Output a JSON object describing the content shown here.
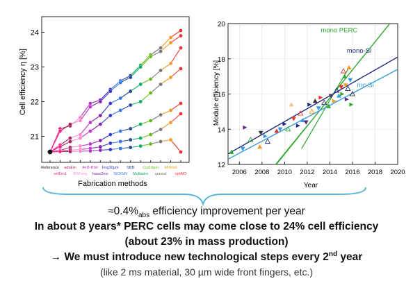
{
  "colors": {
    "mono_perc": "#2ea82e",
    "mono_si": "#1f2a7a",
    "mc_si": "#3399dd",
    "brace": "#59b5d6",
    "reference_black": "#111111"
  },
  "chart_data": [
    {
      "type": "scatter",
      "title": "",
      "xlabel": "Fabrication methods",
      "ylabel": "Cell efficiency η [%]",
      "ylim": [
        20.25,
        24.45
      ],
      "yticks": [
        21,
        22,
        23,
        24
      ],
      "grid": false,
      "categories": [
        {
          "label": "Reference",
          "color": "#111111"
        },
        {
          "label": "selEm1",
          "color": "#ee2288"
        },
        {
          "label": "advEm",
          "color": "#aa2266"
        },
        {
          "label": "BSFseg",
          "color": "#ff88cc"
        },
        {
          "label": "Al-B-BSF",
          "color": "#bb33cc"
        },
        {
          "label": "base2ms",
          "color": "#8822aa"
        },
        {
          "label": "Fng30µm",
          "color": "#3333cc"
        },
        {
          "label": "SiO/SiN",
          "color": "#3377dd"
        },
        {
          "label": "SBB",
          "color": "#224499"
        },
        {
          "label": "Multiwire",
          "color": "#11aa66"
        },
        {
          "label": "Cnt10µm",
          "color": "#66bb11"
        },
        {
          "label": "anneal",
          "color": "#777777"
        },
        {
          "label": "MWrbd",
          "color": "#ee9922"
        },
        {
          "label": "optAlO",
          "color": "#ee3333"
        }
      ],
      "series": [
        {
          "values": [
            20.55,
            21.22,
            21.3,
            21.55,
            21.95,
            22.05,
            22.35,
            22.6,
            22.75,
            23.05,
            23.35,
            23.55,
            23.85,
            24.05
          ]
        },
        {
          "values": [
            20.55,
            21.15,
            21.35,
            21.45,
            21.85,
            22.0,
            22.3,
            22.55,
            22.7,
            23.0,
            23.3,
            23.45,
            23.7,
            23.9
          ]
        },
        {
          "values": [
            20.55,
            20.75,
            20.95,
            21.05,
            21.4,
            21.6,
            21.95,
            22.1,
            22.3,
            22.5,
            22.65,
            22.9,
            23.1,
            23.55
          ]
        },
        {
          "values": [
            20.55,
            20.7,
            20.85,
            20.95,
            21.15,
            21.35,
            21.6,
            21.75,
            21.9,
            22.0,
            22.25,
            22.5,
            22.7,
            22.95
          ]
        },
        {
          "values": [
            20.55,
            20.6,
            20.68,
            20.72,
            20.78,
            20.88,
            21.05,
            21.15,
            21.22,
            21.35,
            21.45,
            21.62,
            21.75,
            21.95
          ]
        },
        {
          "values": [
            20.55,
            20.58,
            20.6,
            20.62,
            20.65,
            20.7,
            20.8,
            20.85,
            20.9,
            20.95,
            21.05,
            21.2,
            21.4,
            21.65
          ]
        },
        {
          "values": [
            20.55,
            20.56,
            20.56,
            20.57,
            20.58,
            20.6,
            20.62,
            20.65,
            20.68,
            20.72,
            20.78,
            20.85,
            20.9,
            20.55
          ]
        }
      ]
    },
    {
      "type": "scatter",
      "title": "",
      "xlabel": "Year",
      "ylabel": "Module efficiency [%]",
      "xlim": [
        2005,
        2020
      ],
      "ylim": [
        12,
        20
      ],
      "xticks": [
        2006,
        2008,
        2010,
        2012,
        2014,
        2016,
        2018,
        2020
      ],
      "yticks": [
        12,
        14,
        16,
        18,
        20
      ],
      "grid": true,
      "trend_lines": [
        {
          "name": "mono PERC",
          "color": "#2ea82e",
          "from": [
            2005.5,
            9.0
          ],
          "to": [
            2019.3,
            20.0
          ]
        },
        {
          "name": "mono-Si",
          "color": "#1f2a7a",
          "from": [
            2005.0,
            12.6
          ],
          "to": [
            2020.0,
            18.1
          ]
        },
        {
          "name": "mc-Si",
          "color": "#3399dd",
          "from": [
            2005.0,
            12.3
          ],
          "to": [
            2020.0,
            17.4
          ]
        }
      ],
      "extra_lines": [
        {
          "color": "#2ea82e",
          "from": [
            2011.5,
            12.9
          ],
          "to": [
            2015.6,
            17.4
          ]
        },
        {
          "color": "#2ea82e",
          "from": [
            2009.2,
            12.0
          ],
          "to": [
            2012.0,
            14.2
          ]
        }
      ],
      "points": [
        {
          "x": 2005.3,
          "y": 12.7,
          "color": "#2ea82e"
        },
        {
          "x": 2006.3,
          "y": 12.9,
          "color": "#3399dd"
        },
        {
          "x": 2006.5,
          "y": 14.1,
          "color": "#5a2a7a"
        },
        {
          "x": 2007.0,
          "y": 13.4,
          "color": "#2ea82e"
        },
        {
          "x": 2007.8,
          "y": 13.0,
          "color": "#ee9922"
        },
        {
          "x": 2007.9,
          "y": 13.8,
          "color": "#333333"
        },
        {
          "x": 2008.3,
          "y": 13.6,
          "color": "#3399dd"
        },
        {
          "x": 2008.5,
          "y": 13.3,
          "color": "#1f2a7a"
        },
        {
          "x": 2009.3,
          "y": 13.9,
          "color": "#ee3333"
        },
        {
          "x": 2009.6,
          "y": 14.0,
          "color": "#3399dd"
        },
        {
          "x": 2010.0,
          "y": 14.3,
          "color": "#1f2a7a"
        },
        {
          "x": 2010.3,
          "y": 14.0,
          "color": "#2ea82e"
        },
        {
          "x": 2010.6,
          "y": 15.4,
          "color": "#f4c090"
        },
        {
          "x": 2010.8,
          "y": 14.6,
          "color": "#ee3333"
        },
        {
          "x": 2011.2,
          "y": 14.2,
          "color": "#1f2a7a"
        },
        {
          "x": 2011.4,
          "y": 14.9,
          "color": "#ee3333"
        },
        {
          "x": 2011.6,
          "y": 14.5,
          "color": "#3399dd"
        },
        {
          "x": 2011.9,
          "y": 14.4,
          "color": "#5a2a7a"
        },
        {
          "x": 2012.2,
          "y": 15.4,
          "color": "#1f2a7a"
        },
        {
          "x": 2012.4,
          "y": 15.0,
          "color": "#ee9922"
        },
        {
          "x": 2012.7,
          "y": 15.6,
          "color": "#333333"
        },
        {
          "x": 2013.0,
          "y": 15.2,
          "color": "#3399dd"
        },
        {
          "x": 2013.2,
          "y": 15.8,
          "color": "#ee3333"
        },
        {
          "x": 2013.5,
          "y": 15.5,
          "color": "#1f2a7a"
        },
        {
          "x": 2013.9,
          "y": 15.3,
          "color": "#2ea82e"
        },
        {
          "x": 2014.1,
          "y": 15.9,
          "color": "#5a2a7a"
        },
        {
          "x": 2014.4,
          "y": 15.6,
          "color": "#ee9922"
        },
        {
          "x": 2014.6,
          "y": 16.2,
          "color": "#1f2a7a"
        },
        {
          "x": 2014.8,
          "y": 15.9,
          "color": "#3399dd"
        },
        {
          "x": 2015.0,
          "y": 16.4,
          "color": "#ee3333"
        },
        {
          "x": 2015.1,
          "y": 16.0,
          "color": "#2ea82e"
        },
        {
          "x": 2015.2,
          "y": 17.3,
          "color": "#ee3333"
        },
        {
          "x": 2015.3,
          "y": 17.0,
          "color": "#2ea82e"
        },
        {
          "x": 2015.4,
          "y": 16.5,
          "color": "#ee9922"
        },
        {
          "x": 2015.5,
          "y": 15.7,
          "color": "#5a2a7a"
        },
        {
          "x": 2015.6,
          "y": 16.3,
          "color": "#1f2a7a"
        },
        {
          "x": 2015.7,
          "y": 17.5,
          "color": "#ee9922"
        },
        {
          "x": 2015.8,
          "y": 16.8,
          "color": "#3399dd"
        },
        {
          "x": 2015.9,
          "y": 15.4,
          "color": "#2ea82e"
        },
        {
          "x": 2016.0,
          "y": 16.0,
          "color": "#333333"
        }
      ]
    }
  ],
  "captions": {
    "rate_value": "≈0.4%",
    "rate_sub": "abs",
    "rate_rest": " efficiency improvement per year",
    "perc_line": "In about 8 years* PERC cells may come close to 24% cell efficiency",
    "mass_line": "(about 23% in mass production)",
    "steps_before": "→ We must introduce new technological steps every 2",
    "steps_sup": "nd",
    "steps_after": " year",
    "examples": "(like 2 ms material, 30 µm wide front fingers,  etc.)"
  }
}
